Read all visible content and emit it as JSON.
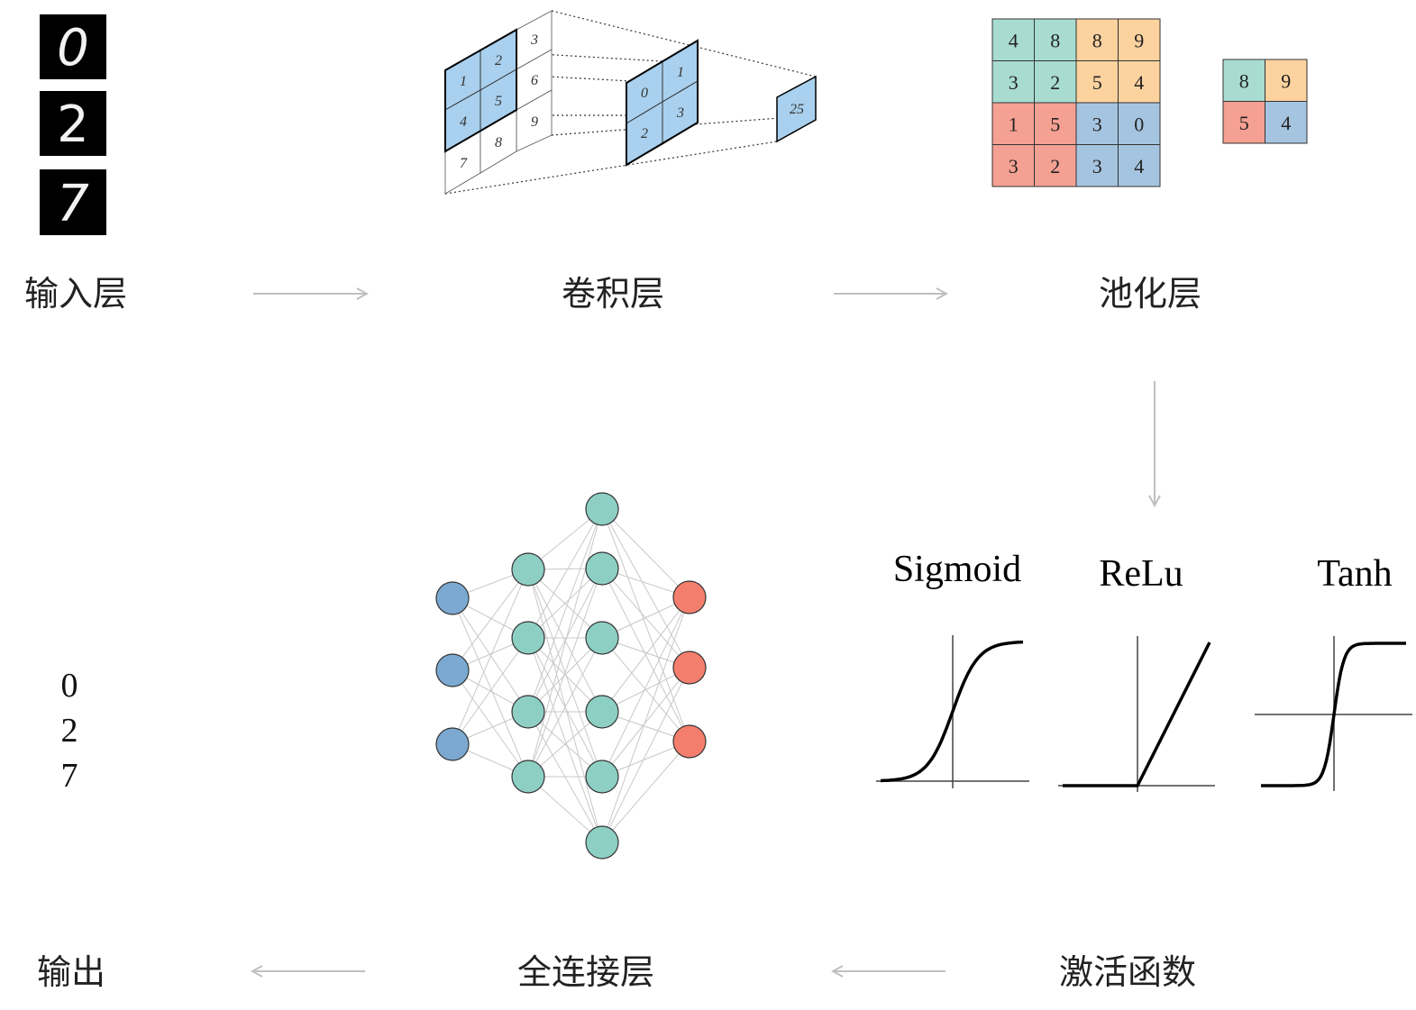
{
  "stages": {
    "input": "输入层",
    "conv": "卷积层",
    "pool": "池化层",
    "activation": "激活函数",
    "fc": "全连接层",
    "output": "输出"
  },
  "input_digits": [
    "0",
    "2",
    "7"
  ],
  "conv": {
    "input_grid": [
      "1",
      "2",
      "3",
      "4",
      "5",
      "6",
      "7",
      "8",
      "9"
    ],
    "kernel": [
      "0",
      "1",
      "2",
      "3"
    ],
    "result": "25"
  },
  "pooling": {
    "grid": [
      [
        "4",
        "8",
        "8",
        "9"
      ],
      [
        "3",
        "2",
        "5",
        "4"
      ],
      [
        "1",
        "5",
        "3",
        "0"
      ],
      [
        "3",
        "2",
        "3",
        "4"
      ]
    ],
    "pooled": [
      [
        "8",
        "9"
      ],
      [
        "5",
        "4"
      ]
    ]
  },
  "activation_functions": [
    "Sigmoid",
    "ReLu",
    "Tanh"
  ],
  "network": {
    "layers": [
      3,
      4,
      6,
      3
    ]
  },
  "output_digits": [
    "0",
    "2",
    "7"
  ],
  "colors": {
    "teal": "#a8dcd1",
    "orange": "#fcd29f",
    "red": "#f4a093",
    "blue": "#a5c4e0",
    "conv_blue": "#a9d0ee",
    "node_blue": "#7ba9d1",
    "node_teal": "#8ecfc4",
    "node_red": "#f47e6e",
    "arrow": "#bfbfbf",
    "edge": "#c8c8c8"
  }
}
